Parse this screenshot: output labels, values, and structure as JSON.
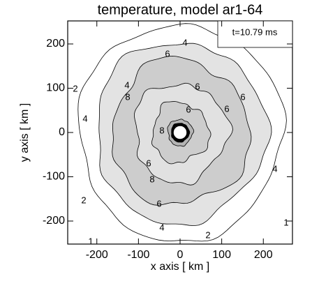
{
  "chart_data": {
    "type": "contour",
    "title": "temperature, model ar1-64",
    "xlabel": "x axis [ km ]",
    "ylabel": "y axis [ km ]",
    "annotation": "t=10.79 ms",
    "xlim": [
      -270,
      270
    ],
    "ylim": [
      -252,
      252
    ],
    "xticks": [
      -200,
      -100,
      0,
      100,
      200
    ],
    "yticks": [
      -200,
      -100,
      0,
      100,
      200
    ],
    "contour_labels": [
      4,
      2,
      4,
      6,
      6,
      6,
      6,
      8,
      8,
      4,
      6,
      6,
      8,
      6,
      4,
      2,
      2,
      4,
      1,
      1
    ]
  }
}
